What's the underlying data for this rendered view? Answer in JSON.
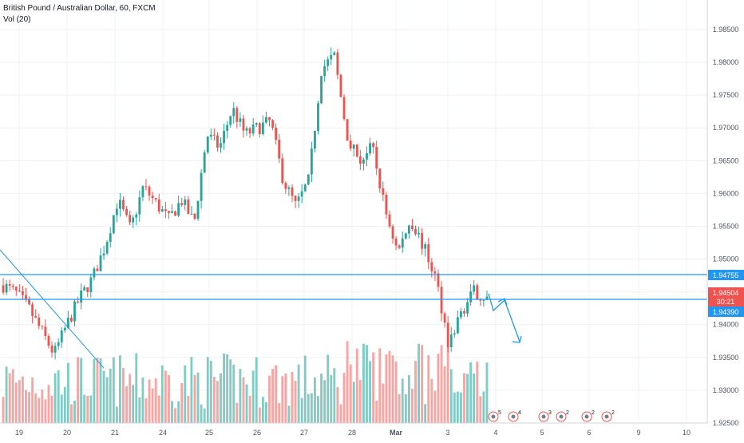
{
  "header": {
    "symbol_title": "British Pound / Australian Dollar, 60, FXCM",
    "volume_label": "Vol (20)"
  },
  "colors": {
    "up": "#26a69a",
    "down": "#ef5350",
    "vol_up": "#80cbc4",
    "vol_down": "#f7a4a2",
    "line": "#2196f3",
    "grid": "#eef0f3",
    "axis_text": "#4c525e",
    "current_price": "#ef5350"
  },
  "price_scale": {
    "ticks": [
      "1.98500",
      "1.98000",
      "1.97500",
      "1.97000",
      "1.96500",
      "1.96000",
      "1.95500",
      "1.95000",
      "1.94500",
      "1.94000",
      "1.93500",
      "1.93000",
      "1.92500"
    ],
    "tags": {
      "upper_line": "1.94755",
      "current_price": "1.94504",
      "countdown": "30:21",
      "lower_line": "1.94390"
    }
  },
  "time_scale": {
    "labels": [
      "19",
      "20",
      "21",
      "24",
      "25",
      "26",
      "27",
      "28",
      "Mar",
      "3",
      "4",
      "5",
      "6",
      "9",
      "10"
    ]
  },
  "event_markers": [
    {
      "label": "5"
    },
    {
      "label": "4"
    },
    {
      "label": "3"
    },
    {
      "label": "2"
    },
    {
      "label": "2"
    },
    {
      "label": "2"
    }
  ],
  "chart_data": {
    "type": "candlestick",
    "title": "British Pound / Australian Dollar, 60, FXCM",
    "xlabel": "",
    "ylabel": "",
    "ylim": [
      1.925,
      1.9875
    ],
    "x_tick_labels": [
      "19",
      "20",
      "21",
      "24",
      "25",
      "26",
      "27",
      "28",
      "Mar",
      "3",
      "4",
      "5",
      "6",
      "9",
      "10"
    ],
    "y_tick_labels": [
      "1.98500",
      "1.98000",
      "1.97500",
      "1.97000",
      "1.96500",
      "1.96000",
      "1.95500",
      "1.95000",
      "1.94500",
      "1.94000",
      "1.93500",
      "1.93000",
      "1.92500"
    ],
    "close_path_anchors": [
      1.946,
      1.9448,
      1.9425,
      1.939,
      1.9355,
      1.94,
      1.944,
      1.947,
      1.952,
      1.959,
      1.9545,
      1.961,
      1.9585,
      1.956,
      1.959,
      1.9555,
      1.969,
      1.967,
      1.973,
      1.969,
      1.97,
      1.971,
      1.962,
      1.958,
      1.962,
      1.979,
      1.981,
      1.969,
      1.965,
      1.967,
      1.9575,
      1.951,
      1.956,
      1.952,
      1.947,
      1.937,
      1.942,
      1.945,
      1.944
    ],
    "horizontal_levels": [
      1.94755,
      1.9439
    ],
    "current_price": 1.94504,
    "grid": true,
    "legend": "top-left",
    "annotations": [
      "descending trend line",
      "projected path arrow"
    ]
  }
}
